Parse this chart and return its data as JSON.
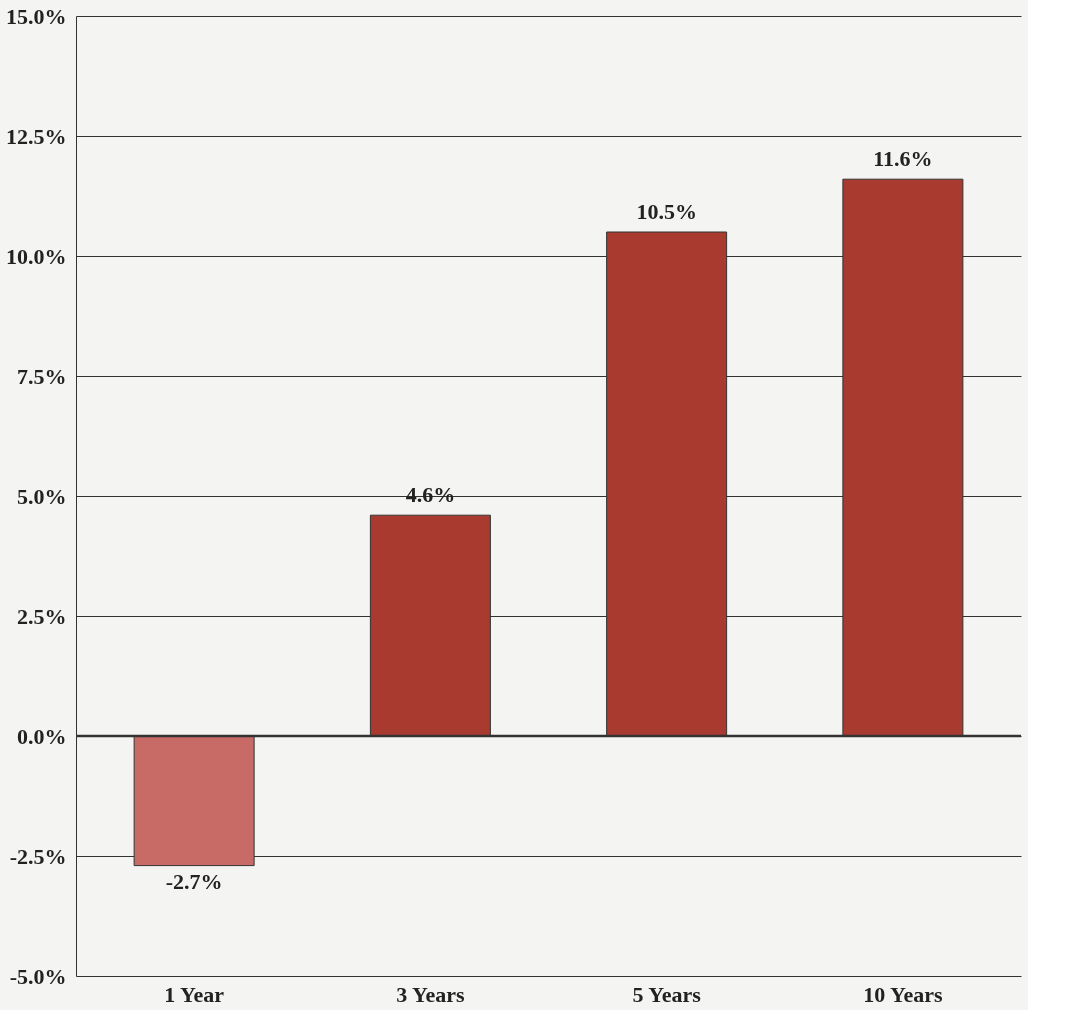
{
  "chart_data": {
    "type": "bar",
    "categories": [
      "1 Year",
      "3 Years",
      "5 Years",
      "10 Years"
    ],
    "values": [
      -2.7,
      4.6,
      10.5,
      11.6
    ],
    "colors": [
      "#c86a66",
      "#a83a30",
      "#a83a30",
      "#a83a30"
    ],
    "value_labels": [
      "-2.7%",
      "4.6%",
      "10.5%",
      "11.6%"
    ],
    "ylim": [
      -5,
      15
    ],
    "yticks": [
      {
        "value": -5,
        "label": "-5.0%"
      },
      {
        "value": -2.5,
        "label": "-2.5%"
      },
      {
        "value": 0,
        "label": "0.0%"
      },
      {
        "value": 2.5,
        "label": "2.5%"
      },
      {
        "value": 5,
        "label": "5.0%"
      },
      {
        "value": 7.5,
        "label": "7.5%"
      },
      {
        "value": 10,
        "label": "10.0%"
      },
      {
        "value": 12.5,
        "label": "12.5%"
      },
      {
        "value": 15,
        "label": "15.0%"
      }
    ],
    "ref_lines": [
      {
        "axis": "y",
        "value": 0,
        "color": "#333333"
      }
    ],
    "grid": "y"
  }
}
